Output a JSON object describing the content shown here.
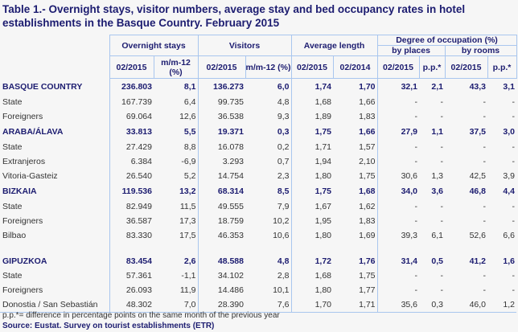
{
  "title": "Table 1.- Overnight stays, visitor numbers, average stay and bed occupancy rates in hotel establishments in the Basque Country. February 2015",
  "headers": {
    "overnight": "Overnight stays",
    "visitors": "Visitors",
    "avg": "Average length",
    "degree": "Degree of occupation (%)",
    "places": "by places",
    "rooms": "by rooms",
    "sub": [
      "02/2015",
      "m/m-12 (%)",
      "02/2015",
      "m/m-12 (%)",
      "02/2015",
      "02/2014",
      "02/2015",
      "p.p.*",
      "02/2015",
      "p.p.*"
    ]
  },
  "rows": [
    {
      "label": "BASQUE COUNTRY",
      "bold": true,
      "v": [
        "236.803",
        "8,1",
        "136.273",
        "6,0",
        "1,74",
        "1,70",
        "32,1",
        "2,1",
        "43,3",
        "3,1"
      ]
    },
    {
      "label": "State",
      "v": [
        "167.739",
        "6,4",
        "99.735",
        "4,8",
        "1,68",
        "1,66",
        "-",
        "-",
        "-",
        "-"
      ]
    },
    {
      "label": "Foreigners",
      "v": [
        "69.064",
        "12,6",
        "36.538",
        "9,3",
        "1,89",
        "1,83",
        "-",
        "-",
        "-",
        "-"
      ]
    },
    {
      "label": "ARABA/ÁLAVA",
      "bold": true,
      "v": [
        "33.813",
        "5,5",
        "19.371",
        "0,3",
        "1,75",
        "1,66",
        "27,9",
        "1,1",
        "37,5",
        "3,0"
      ]
    },
    {
      "label": "State",
      "v": [
        "27.429",
        "8,8",
        "16.078",
        "0,2",
        "1,71",
        "1,57",
        "-",
        "-",
        "-",
        "-"
      ]
    },
    {
      "label": "Extranjeros",
      "v": [
        "6.384",
        "-6,9",
        "3.293",
        "0,7",
        "1,94",
        "2,10",
        "-",
        "-",
        "-",
        "-"
      ]
    },
    {
      "label": "Vitoria-Gasteiz",
      "v": [
        "26.540",
        "5,2",
        "14.754",
        "2,3",
        "1,80",
        "1,75",
        "30,6",
        "1,3",
        "42,5",
        "3,9"
      ]
    },
    {
      "label": "BIZKAIA",
      "bold": true,
      "v": [
        "119.536",
        "13,2",
        "68.314",
        "8,5",
        "1,75",
        "1,68",
        "34,0",
        "3,6",
        "46,8",
        "4,4"
      ]
    },
    {
      "label": "State",
      "v": [
        "82.949",
        "11,5",
        "49.555",
        "7,9",
        "1,67",
        "1,62",
        "-",
        "-",
        "-",
        "-"
      ]
    },
    {
      "label": "Foreigners",
      "v": [
        "36.587",
        "17,3",
        "18.759",
        "10,2",
        "1,95",
        "1,83",
        "-",
        "-",
        "-",
        "-"
      ]
    },
    {
      "label": "Bilbao",
      "v": [
        "83.330",
        "17,5",
        "46.353",
        "10,6",
        "1,80",
        "1,69",
        "39,3",
        "6,1",
        "52,6",
        "6,6"
      ]
    },
    {
      "label": "GIPUZKOA",
      "bold": true,
      "gap": true,
      "v": [
        "83.454",
        "2,6",
        "48.588",
        "4,8",
        "1,72",
        "1,76",
        "31,4",
        "0,5",
        "41,2",
        "1,6"
      ]
    },
    {
      "label": "State",
      "v": [
        "57.361",
        "-1,1",
        "34.102",
        "2,8",
        "1,68",
        "1,75",
        "-",
        "-",
        "-",
        "-"
      ]
    },
    {
      "label": "Foreigners",
      "v": [
        "26.093",
        "11,9",
        "14.486",
        "10,1",
        "1,80",
        "1,77",
        "-",
        "-",
        "-",
        "-"
      ]
    },
    {
      "label": "Donostia / San Sebastián",
      "v": [
        "48.302",
        "7,0",
        "28.390",
        "7,6",
        "1,70",
        "1,71",
        "35,6",
        "0,3",
        "46,0",
        "1,2"
      ]
    }
  ],
  "footnote": "p.p.*= difference in percentage points on the same month of the previous year",
  "source": "Source: Eustat. Survey on tourist establishments (ETR)"
}
